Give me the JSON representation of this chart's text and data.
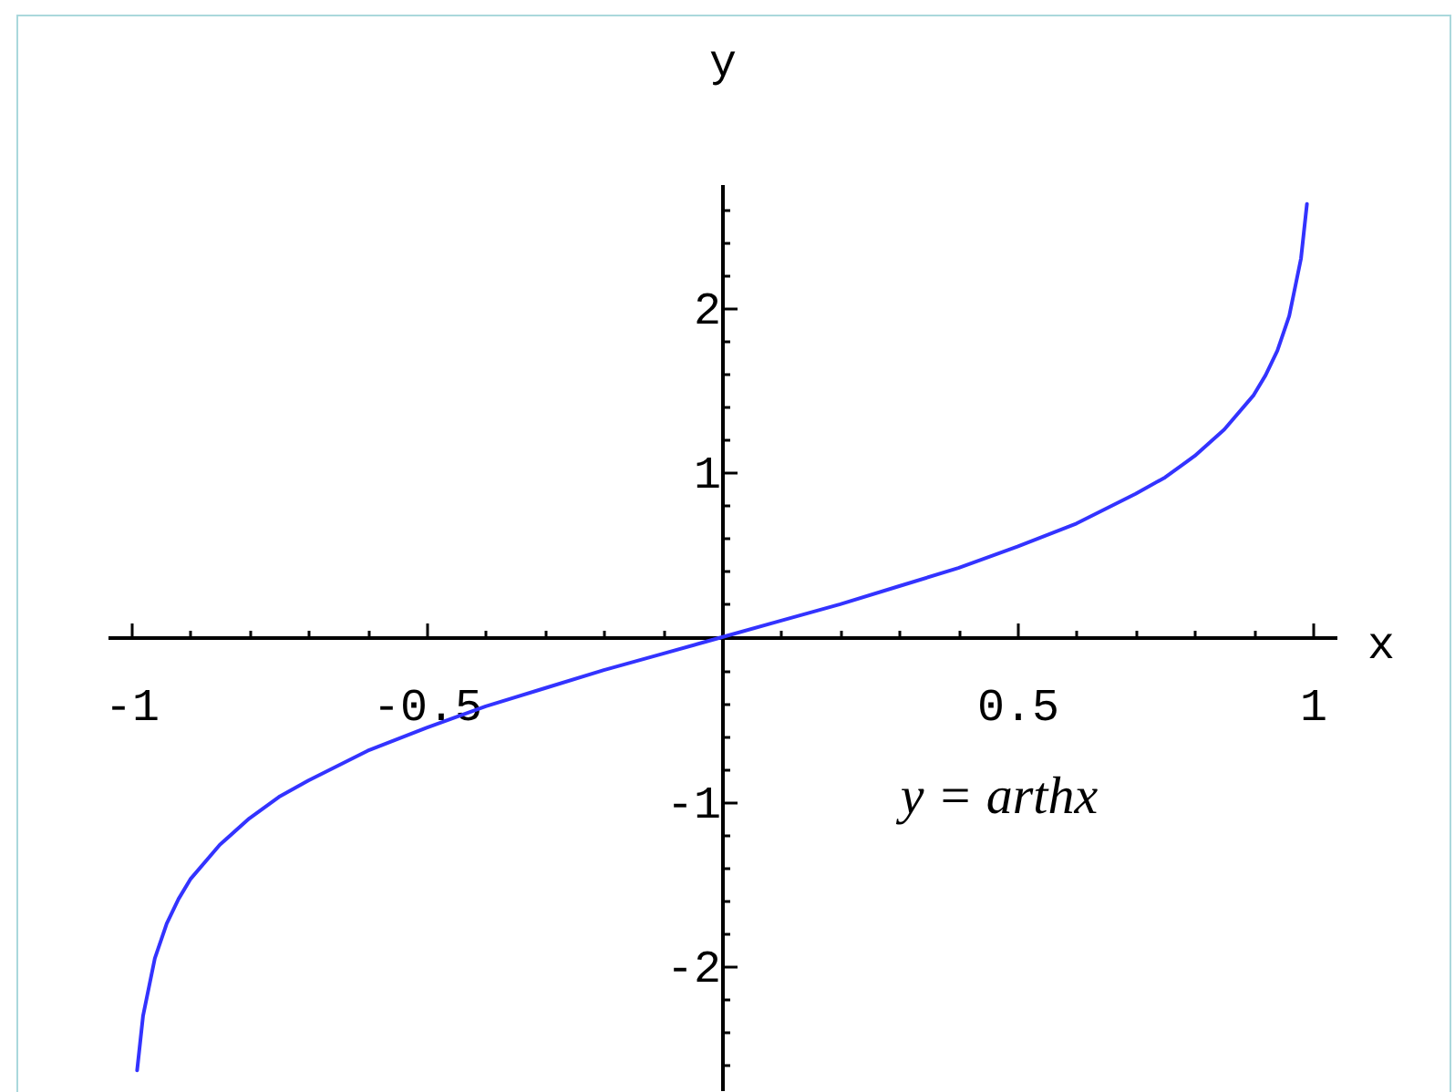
{
  "chart_data": {
    "type": "line",
    "xlabel": "x",
    "ylabel": "y",
    "annotations": [
      "y = arthx"
    ],
    "x": [
      -0.99,
      -0.98,
      -0.96,
      -0.94,
      -0.92,
      -0.9,
      -0.85,
      -0.8,
      -0.75,
      -0.7,
      -0.6,
      -0.5,
      -0.4,
      -0.3,
      -0.2,
      -0.1,
      0,
      0.1,
      0.2,
      0.3,
      0.4,
      0.5,
      0.6,
      0.7,
      0.75,
      0.8,
      0.85,
      0.9,
      0.92,
      0.94,
      0.96,
      0.98,
      0.99
    ],
    "series": [
      {
        "color": "#3333ff",
        "values": [
          -2.63,
          -2.3,
          -1.95,
          -1.74,
          -1.59,
          -1.47,
          -1.26,
          -1.1,
          -0.97,
          -0.87,
          -0.69,
          -0.55,
          -0.42,
          -0.31,
          -0.2,
          -0.1,
          0,
          0.1,
          0.2,
          0.31,
          0.42,
          0.55,
          0.69,
          0.87,
          0.97,
          1.1,
          1.26,
          1.47,
          1.59,
          1.74,
          1.95,
          2.3,
          2.63
        ]
      }
    ],
    "xlim": [
      -1.04,
      1.04
    ],
    "ylim": [
      -2.75,
      2.75
    ],
    "xticks": [
      -1,
      {
        "value": -0.9,
        "label": null
      },
      {
        "value": -0.8,
        "label": null
      },
      {
        "value": -0.7,
        "label": null
      },
      {
        "value": -0.6,
        "label": null
      },
      -0.5,
      {
        "value": -0.4,
        "label": null
      },
      {
        "value": -0.3,
        "label": null
      },
      {
        "value": -0.2,
        "label": null
      },
      {
        "value": -0.1,
        "label": null
      },
      {
        "value": 0.1,
        "label": null
      },
      {
        "value": 0.2,
        "label": null
      },
      {
        "value": 0.3,
        "label": null
      },
      {
        "value": 0.4,
        "label": null
      },
      0.5,
      {
        "value": 0.6,
        "label": null
      },
      {
        "value": 0.7,
        "label": null
      },
      {
        "value": 0.8,
        "label": null
      },
      {
        "value": 0.9,
        "label": null
      },
      1
    ],
    "yticks": [
      {
        "value": -2.6,
        "label": null
      },
      {
        "value": -2.4,
        "label": null
      },
      {
        "value": -2.2,
        "label": null
      },
      -2,
      {
        "value": -1.8,
        "label": null
      },
      {
        "value": -1.6,
        "label": null
      },
      {
        "value": -1.4,
        "label": null
      },
      {
        "value": -1.2,
        "label": null
      },
      -1,
      {
        "value": -0.8,
        "label": null
      },
      {
        "value": -0.6,
        "label": null
      },
      {
        "value": -0.4,
        "label": null
      },
      {
        "value": -0.2,
        "label": null
      },
      {
        "value": 0.2,
        "label": null
      },
      {
        "value": 0.4,
        "label": null
      },
      {
        "value": 0.6,
        "label": null
      },
      {
        "value": 0.8,
        "label": null
      },
      1,
      {
        "value": 1.2,
        "label": null
      },
      {
        "value": 1.4,
        "label": null
      },
      {
        "value": 1.6,
        "label": null
      },
      {
        "value": 1.8,
        "label": null
      },
      2,
      {
        "value": 2.2,
        "label": null
      },
      {
        "value": 2.4,
        "label": null
      },
      {
        "value": 2.6,
        "label": null
      }
    ],
    "grid": false,
    "legend": false,
    "marker": "none",
    "line_style": "solid"
  }
}
